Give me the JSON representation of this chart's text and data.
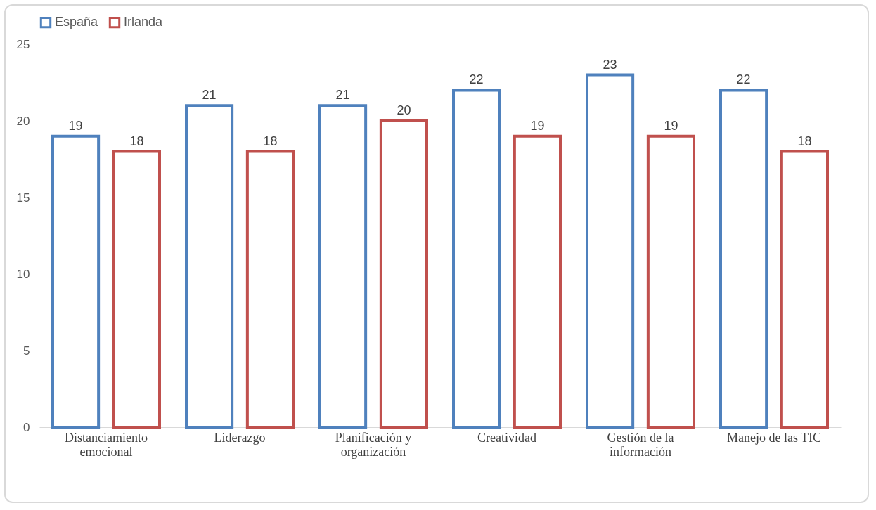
{
  "chart_data": {
    "type": "bar",
    "categories": [
      "Distanciamiento emocional",
      "Liderazgo",
      "Planificación y organización",
      "Creatividad",
      "Gestión de la información",
      "Manejo de las TIC"
    ],
    "series": [
      {
        "name": "España",
        "color": "#4f81bd",
        "values": [
          19,
          21,
          21,
          22,
          23,
          22
        ]
      },
      {
        "name": "Irlanda",
        "color": "#c0504d",
        "values": [
          18,
          18,
          20,
          19,
          19,
          18
        ]
      }
    ],
    "ylim": [
      0,
      25
    ],
    "yticks": [
      0,
      5,
      10,
      15,
      20,
      25
    ],
    "grid": false,
    "legend": "top",
    "data_labels": true
  }
}
